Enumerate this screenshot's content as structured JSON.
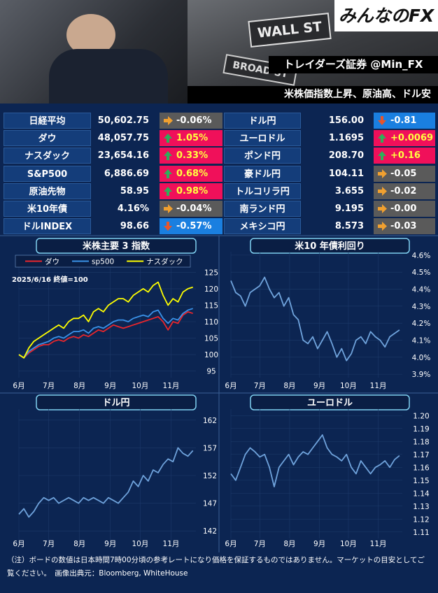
{
  "header": {
    "logo": "みんなのFX",
    "sign_1": "WALL ST",
    "sign_2": "BROAD ST",
    "source": "トレイダーズ証券 @Min_FX",
    "headline": "米株価指数上昇、原油高、ドル安"
  },
  "table": {
    "rows": [
      {
        "left": {
          "name": "日経平均",
          "value": "50,602.75",
          "change": "-0.06%",
          "dir": "flat"
        },
        "right": {
          "name": "ドル円",
          "value": "156.00",
          "change": "-0.81",
          "dir": "down"
        }
      },
      {
        "left": {
          "name": "ダウ",
          "value": "48,057.75",
          "change": "1.05%",
          "dir": "up"
        },
        "right": {
          "name": "ユーロドル",
          "value": "1.1695",
          "change": "+0.0069",
          "dir": "up"
        }
      },
      {
        "left": {
          "name": "ナスダック",
          "value": "23,654.16",
          "change": "0.33%",
          "dir": "up"
        },
        "right": {
          "name": "ポンド円",
          "value": "208.70",
          "change": "+0.16",
          "dir": "up"
        }
      },
      {
        "left": {
          "name": "S&P500",
          "value": "6,886.69",
          "change": "0.68%",
          "dir": "up"
        },
        "right": {
          "name": "豪ドル円",
          "value": "104.11",
          "change": "-0.05",
          "dir": "flat"
        }
      },
      {
        "left": {
          "name": "原油先物",
          "value": "58.95",
          "change": "0.98%",
          "dir": "up"
        },
        "right": {
          "name": "トルコリラ円",
          "value": "3.655",
          "change": "-0.02",
          "dir": "flat"
        }
      },
      {
        "left": {
          "name": "米10年債",
          "value": "4.16%",
          "change": "-0.04%",
          "dir": "flat"
        },
        "right": {
          "name": "南ランド円",
          "value": "9.195",
          "change": "-0.00",
          "dir": "flat"
        }
      },
      {
        "left": {
          "name": "ドルINDEX",
          "value": "98.66",
          "change": "-0.57%",
          "dir": "down"
        },
        "right": {
          "name": "メキシコ円",
          "value": "8.573",
          "change": "-0.03",
          "dir": "flat"
        }
      }
    ]
  },
  "chart_data": [
    {
      "type": "line",
      "title": "米株主要 3 指数",
      "annotation": "2025/6/16 終値=100",
      "legend": "top",
      "x": [
        0,
        5,
        10,
        15,
        20,
        25,
        30,
        35,
        40,
        45,
        50,
        55,
        60,
        65,
        70,
        75,
        80,
        85,
        90,
        95,
        100,
        105,
        110,
        115,
        120,
        125,
        130,
        135,
        140,
        145,
        150,
        155,
        160,
        165,
        170,
        175
      ],
      "xlim": [
        0,
        178
      ],
      "xticks": [
        {
          "value": 0,
          "label": "6月"
        },
        {
          "value": 30,
          "label": "7月"
        },
        {
          "value": 61,
          "label": "8月"
        },
        {
          "value": 92,
          "label": "9月"
        },
        {
          "value": 122,
          "label": "10月"
        },
        {
          "value": 153,
          "label": "11月"
        }
      ],
      "ylim": [
        93,
        127
      ],
      "yticks": [
        95,
        100,
        105,
        110,
        115,
        120,
        125
      ],
      "grid": true,
      "series": [
        {
          "name": "ダウ",
          "color": "#e8262c",
          "values": [
            100,
            99,
            100.5,
            101.5,
            102.5,
            103,
            103,
            104,
            104.5,
            104,
            105,
            105.5,
            105,
            106,
            105.5,
            106.5,
            107.5,
            107,
            108,
            109,
            108.5,
            108,
            108.5,
            109,
            109.5,
            110,
            110.5,
            111,
            111.5,
            110,
            107.5,
            110,
            109.5,
            112,
            113,
            112.5
          ]
        },
        {
          "name": "sp500",
          "color": "#3a92e8",
          "values": [
            100,
            99,
            101,
            102,
            103,
            103.5,
            104,
            105,
            105.5,
            105,
            106,
            107,
            107,
            107.5,
            106.5,
            108,
            108.5,
            108,
            109,
            110,
            110.5,
            110.5,
            110,
            111,
            111.5,
            112,
            111.5,
            113,
            113.5,
            111,
            109.5,
            111,
            110.5,
            112.5,
            113.5,
            114
          ]
        },
        {
          "name": "ナスダック",
          "color": "#ffff00",
          "values": [
            100,
            99,
            102,
            104,
            105,
            106,
            107,
            108,
            109,
            108,
            110,
            111,
            111,
            112,
            110,
            113,
            114,
            113,
            115,
            116,
            117,
            117,
            116,
            118,
            119,
            120,
            119,
            121,
            122,
            118,
            115,
            117,
            116,
            119,
            120,
            120.5
          ]
        }
      ]
    },
    {
      "type": "line",
      "title": "米10 年債利回り",
      "x": [
        0,
        5,
        10,
        15,
        20,
        25,
        30,
        35,
        40,
        45,
        50,
        55,
        60,
        65,
        70,
        75,
        80,
        85,
        90,
        95,
        100,
        105,
        110,
        115,
        120,
        125,
        130,
        135,
        140,
        145,
        150,
        155,
        160,
        165,
        170,
        175
      ],
      "xlim": [
        0,
        178
      ],
      "xticks": [
        {
          "value": 0,
          "label": "6月"
        },
        {
          "value": 30,
          "label": "7月"
        },
        {
          "value": 61,
          "label": "8月"
        },
        {
          "value": 92,
          "label": "9月"
        },
        {
          "value": 122,
          "label": "10月"
        },
        {
          "value": 153,
          "label": "11月"
        }
      ],
      "ylim": [
        3.88,
        4.62
      ],
      "yticks": [
        {
          "value": 3.9,
          "label": "3.9%"
        },
        {
          "value": 4.0,
          "label": "4.0%"
        },
        {
          "value": 4.1,
          "label": "4.1%"
        },
        {
          "value": 4.2,
          "label": "4.2%"
        },
        {
          "value": 4.3,
          "label": "4.3%"
        },
        {
          "value": 4.4,
          "label": "4.4%"
        },
        {
          "value": 4.5,
          "label": "4.5%"
        },
        {
          "value": 4.6,
          "label": "4.6%"
        }
      ],
      "grid": true,
      "series": [
        {
          "color": "#6fa3dc",
          "values": [
            4.45,
            4.38,
            4.36,
            4.3,
            4.38,
            4.4,
            4.42,
            4.47,
            4.4,
            4.35,
            4.38,
            4.3,
            4.35,
            4.25,
            4.22,
            4.1,
            4.08,
            4.12,
            4.05,
            4.1,
            4.15,
            4.08,
            4.0,
            4.05,
            3.98,
            4.02,
            4.1,
            4.12,
            4.08,
            4.15,
            4.12,
            4.1,
            4.06,
            4.12,
            4.14,
            4.16
          ]
        }
      ]
    },
    {
      "type": "line",
      "title": "ドル円",
      "x": [
        0,
        5,
        10,
        15,
        20,
        25,
        30,
        35,
        40,
        45,
        50,
        55,
        60,
        65,
        70,
        75,
        80,
        85,
        90,
        95,
        100,
        105,
        110,
        115,
        120,
        125,
        130,
        135,
        140,
        145,
        150,
        155,
        160,
        165,
        170,
        175
      ],
      "xlim": [
        0,
        178
      ],
      "xticks": [
        {
          "value": 0,
          "label": "6月"
        },
        {
          "value": 30,
          "label": "7月"
        },
        {
          "value": 61,
          "label": "8月"
        },
        {
          "value": 92,
          "label": "9月"
        },
        {
          "value": 122,
          "label": "10月"
        },
        {
          "value": 153,
          "label": "11月"
        }
      ],
      "ylim": [
        140,
        164
      ],
      "yticks": [
        142,
        147,
        152,
        157,
        162
      ],
      "grid": true,
      "series": [
        {
          "color": "#6fa3dc",
          "values": [
            145,
            146,
            144.5,
            145.5,
            147,
            148,
            147.5,
            148,
            147,
            147.5,
            148,
            147.5,
            147,
            148,
            147.5,
            148,
            147.5,
            147,
            148,
            147.5,
            147,
            148,
            149,
            151,
            150,
            152,
            151,
            153,
            152.5,
            154,
            155,
            154.5,
            157,
            156,
            155.5,
            156.5
          ]
        }
      ]
    },
    {
      "type": "line",
      "title": "ユーロドル",
      "x": [
        0,
        5,
        10,
        15,
        20,
        25,
        30,
        35,
        40,
        45,
        50,
        55,
        60,
        65,
        70,
        75,
        80,
        85,
        90,
        95,
        100,
        105,
        110,
        115,
        120,
        125,
        130,
        135,
        140,
        145,
        150,
        155,
        160,
        165,
        170,
        175
      ],
      "xlim": [
        0,
        178
      ],
      "xticks": [
        {
          "value": 0,
          "label": "6月"
        },
        {
          "value": 30,
          "label": "7月"
        },
        {
          "value": 61,
          "label": "8月"
        },
        {
          "value": 92,
          "label": "9月"
        },
        {
          "value": 122,
          "label": "10月"
        },
        {
          "value": 153,
          "label": "11月"
        }
      ],
      "ylim": [
        1.105,
        1.205
      ],
      "yticks": [
        {
          "value": 1.11,
          "label": "1.11"
        },
        {
          "value": 1.12,
          "label": "1.12"
        },
        {
          "value": 1.13,
          "label": "1.13"
        },
        {
          "value": 1.14,
          "label": "1.14"
        },
        {
          "value": 1.15,
          "label": "1.15"
        },
        {
          "value": 1.16,
          "label": "1.16"
        },
        {
          "value": 1.17,
          "label": "1.17"
        },
        {
          "value": 1.18,
          "label": "1.18"
        },
        {
          "value": 1.19,
          "label": "1.19"
        },
        {
          "value": 1.2,
          "label": "1.20"
        }
      ],
      "grid": true,
      "series": [
        {
          "color": "#6fa3dc",
          "values": [
            1.155,
            1.15,
            1.16,
            1.17,
            1.175,
            1.172,
            1.168,
            1.17,
            1.16,
            1.145,
            1.16,
            1.165,
            1.17,
            1.162,
            1.168,
            1.172,
            1.17,
            1.175,
            1.18,
            1.185,
            1.175,
            1.17,
            1.168,
            1.165,
            1.17,
            1.16,
            1.155,
            1.165,
            1.16,
            1.155,
            1.16,
            1.162,
            1.165,
            1.16,
            1.166,
            1.169
          ]
        }
      ]
    }
  ],
  "footer": "（注）ボードの数値は日本時間7時00分頃の参考レートになり価格を保証するものではありません。マーケットの目安としてご覧ください。　画像出典元：Bloomberg, WhiteHouse"
}
